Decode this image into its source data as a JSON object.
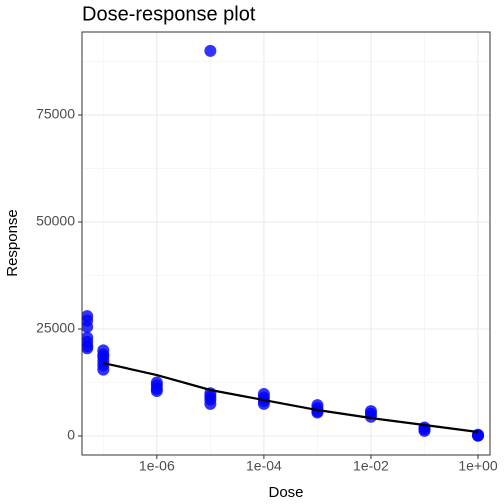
{
  "chart_data": {
    "type": "scatter",
    "title": "Dose-response plot",
    "xlabel": "Dose",
    "ylabel": "Response",
    "xlog": true,
    "grid": true,
    "xlim": [
      4e-08,
      1.675
    ],
    "ylim": [
      -4440,
      94400
    ],
    "xticks": [
      {
        "value": 1e-06,
        "label": "1e-06"
      },
      {
        "value": 0.0001,
        "label": "1e-04"
      },
      {
        "value": 0.01,
        "label": "1e-02"
      },
      {
        "value": 1,
        "label": "1e+00"
      }
    ],
    "yticks": [
      0,
      25000,
      50000,
      75000
    ],
    "xminor": [
      1e-07,
      1e-05,
      0.001,
      0.1
    ],
    "yminor": [
      12500,
      37500,
      62500,
      87500
    ],
    "points": {
      "color": "#0000ff",
      "x": [
        5e-08,
        5e-08,
        5e-08,
        5e-08,
        5e-08,
        5e-08,
        5e-08,
        1e-07,
        1e-07,
        1e-07,
        1e-07,
        1e-07,
        1e-07,
        1e-06,
        1e-06,
        1e-06,
        1e-06,
        1e-05,
        1e-05,
        1e-05,
        1e-05,
        1e-05,
        0.0001,
        0.0001,
        0.0001,
        0.0001,
        0.001,
        0.001,
        0.001,
        0.001,
        0.01,
        0.01,
        0.01,
        0.1,
        0.1,
        0.1,
        1,
        1,
        1
      ],
      "y": [
        28000,
        27000,
        25500,
        23000,
        22000,
        21000,
        20500,
        20000,
        19000,
        18500,
        17500,
        16500,
        15500,
        12500,
        11800,
        11000,
        10500,
        90000,
        10000,
        9200,
        8500,
        7500,
        9800,
        9000,
        8200,
        7500,
        7200,
        6500,
        5800,
        5500,
        5800,
        5200,
        4500,
        2000,
        1600,
        1200,
        300,
        150,
        50
      ]
    },
    "fit": {
      "color": "#000000",
      "x": [
        1e-07,
        1e-06,
        1e-05,
        0.0001,
        0.001,
        0.01,
        0.1,
        1
      ],
      "y": [
        17050,
        14250,
        10750,
        8400,
        6070,
        4200,
        2570,
        930
      ]
    }
  }
}
